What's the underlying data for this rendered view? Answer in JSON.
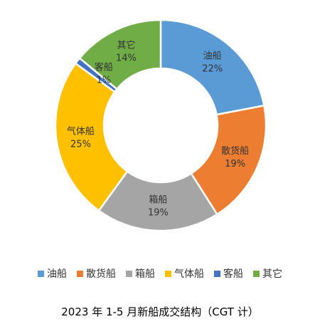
{
  "chart_data": {
    "type": "donut",
    "title": "2023 年 1-5 月新船成交结构（CGT 计）",
    "unit": "%",
    "slices": [
      {
        "name": "油船",
        "value": 22,
        "label": "22%",
        "color": "#5B9BD5"
      },
      {
        "name": "散货船",
        "value": 19,
        "label": "19%",
        "color": "#ED7D31"
      },
      {
        "name": "箱船",
        "value": 19,
        "label": "19%",
        "color": "#A5A5A5"
      },
      {
        "name": "气体船",
        "value": 25,
        "label": "25%",
        "color": "#FFC000"
      },
      {
        "name": "客船",
        "value": 1,
        "label": "1%",
        "color": "#4472C4"
      },
      {
        "name": "其它",
        "value": 14,
        "label": "14%",
        "color": "#70AD47"
      }
    ],
    "legend_position": "bottom"
  }
}
